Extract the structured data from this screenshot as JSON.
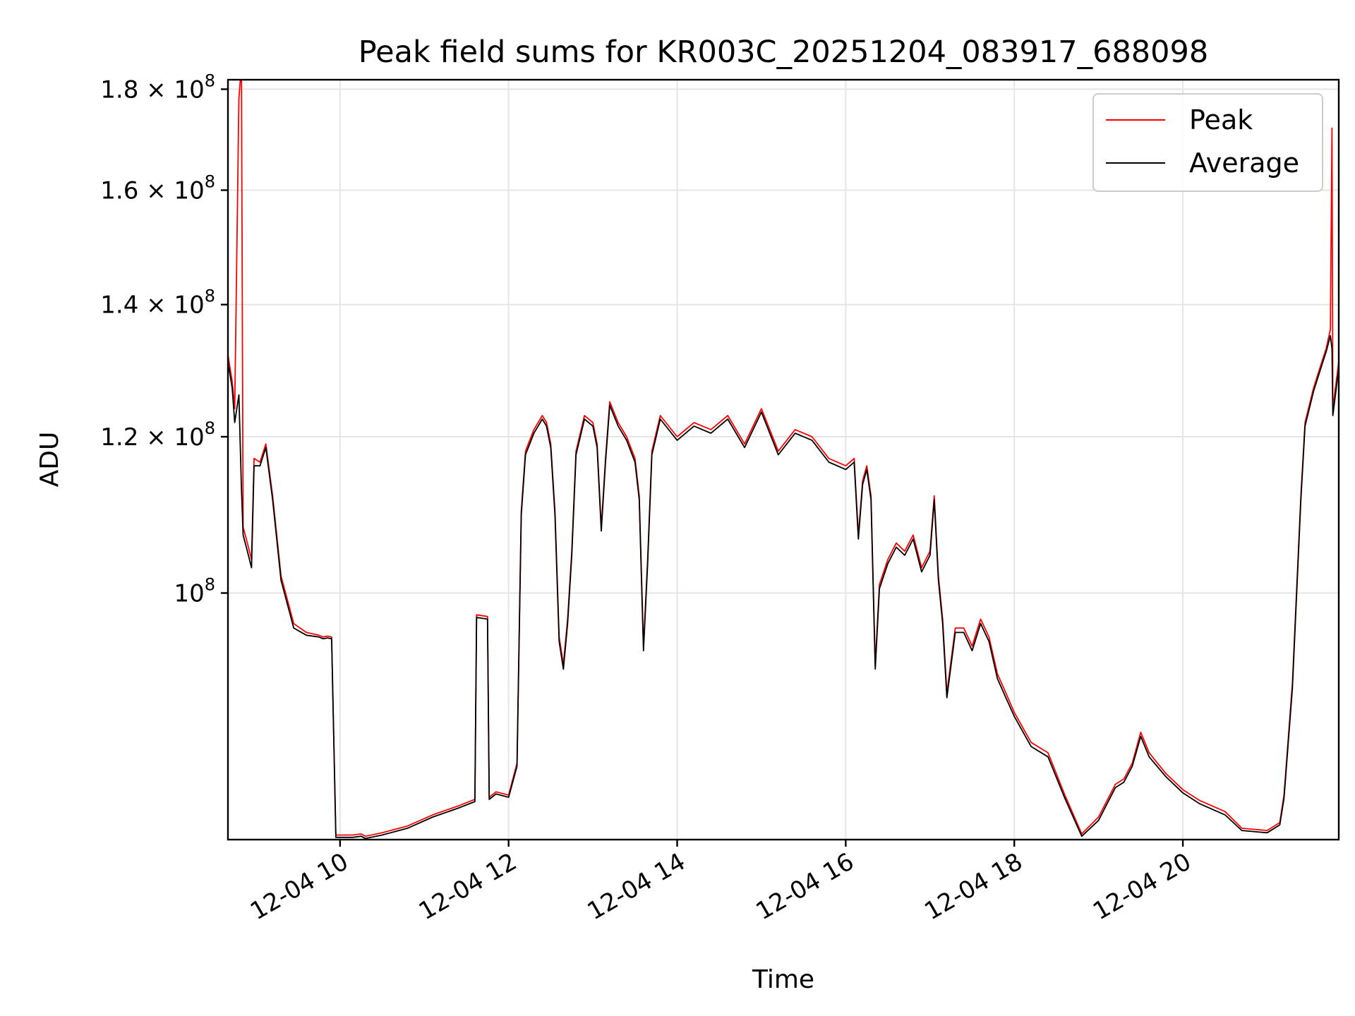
{
  "chart_data": {
    "type": "line",
    "title": "Peak field sums for KR003C_20251204_083917_688098",
    "xlabel": "Time",
    "ylabel": "ADU",
    "xlim_hours": [
      8.67,
      21.85
    ],
    "ylim": [
      75000000,
      182000000
    ],
    "y_scale": "log",
    "grid": true,
    "legend_position": "top-right",
    "x_ticks": [
      {
        "value": 10,
        "label": "12-04 10"
      },
      {
        "value": 12,
        "label": "12-04 12"
      },
      {
        "value": 14,
        "label": "12-04 14"
      },
      {
        "value": 16,
        "label": "12-04 16"
      },
      {
        "value": 18,
        "label": "12-04 18"
      },
      {
        "value": 20,
        "label": "12-04 20"
      }
    ],
    "y_ticks": [
      {
        "value": 100000000,
        "base": "10",
        "exp": "8"
      },
      {
        "value": 120000000,
        "base": "1.2 × 10",
        "exp": "8"
      },
      {
        "value": 140000000,
        "base": "1.4 × 10",
        "exp": "8"
      },
      {
        "value": 160000000,
        "base": "1.6 × 10",
        "exp": "8"
      },
      {
        "value": 180000000,
        "base": "1.8 × 10",
        "exp": "8"
      }
    ],
    "series": [
      {
        "name": "Peak",
        "color": "#ff0000",
        "points": [
          [
            8.67,
            132000000
          ],
          [
            8.72,
            128000000
          ],
          [
            8.75,
            124000000
          ],
          [
            8.8,
            178000000
          ],
          [
            8.83,
            185000000
          ],
          [
            8.85,
            108000000
          ],
          [
            8.9,
            106000000
          ],
          [
            8.95,
            104000000
          ],
          [
            8.98,
            117000000
          ],
          [
            9.05,
            116500000
          ],
          [
            9.12,
            119000000
          ],
          [
            9.2,
            112000000
          ],
          [
            9.3,
            102000000
          ],
          [
            9.45,
            96500000
          ],
          [
            9.6,
            95500000
          ],
          [
            9.75,
            95200000
          ],
          [
            9.8,
            95000000
          ],
          [
            9.85,
            95100000
          ],
          [
            9.9,
            95000000
          ],
          [
            9.95,
            75400000
          ],
          [
            10.15,
            75400000
          ],
          [
            10.25,
            75500000
          ],
          [
            10.3,
            75300000
          ],
          [
            10.5,
            75600000
          ],
          [
            10.8,
            76200000
          ],
          [
            11.1,
            77200000
          ],
          [
            11.4,
            78000000
          ],
          [
            11.6,
            78600000
          ],
          [
            11.62,
            97500000
          ],
          [
            11.75,
            97300000
          ],
          [
            11.77,
            78800000
          ],
          [
            11.85,
            79300000
          ],
          [
            12.0,
            79000000
          ],
          [
            12.1,
            82000000
          ],
          [
            12.15,
            110000000
          ],
          [
            12.2,
            118000000
          ],
          [
            12.3,
            121000000
          ],
          [
            12.4,
            123000000
          ],
          [
            12.45,
            122000000
          ],
          [
            12.5,
            119000000
          ],
          [
            12.55,
            110000000
          ],
          [
            12.6,
            95000000
          ],
          [
            12.65,
            92000000
          ],
          [
            12.7,
            97000000
          ],
          [
            12.75,
            105000000
          ],
          [
            12.8,
            118000000
          ],
          [
            12.9,
            123000000
          ],
          [
            13.0,
            122000000
          ],
          [
            13.05,
            119000000
          ],
          [
            13.1,
            108000000
          ],
          [
            13.15,
            117000000
          ],
          [
            13.2,
            125000000
          ],
          [
            13.3,
            122000000
          ],
          [
            13.4,
            120000000
          ],
          [
            13.5,
            117000000
          ],
          [
            13.55,
            112000000
          ],
          [
            13.6,
            94000000
          ],
          [
            13.65,
            104000000
          ],
          [
            13.7,
            118000000
          ],
          [
            13.8,
            123000000
          ],
          [
            14.0,
            120000000
          ],
          [
            14.2,
            122000000
          ],
          [
            14.4,
            121000000
          ],
          [
            14.6,
            123000000
          ],
          [
            14.8,
            119000000
          ],
          [
            15.0,
            124000000
          ],
          [
            15.2,
            118000000
          ],
          [
            15.4,
            121000000
          ],
          [
            15.6,
            120000000
          ],
          [
            15.8,
            117000000
          ],
          [
            16.0,
            116000000
          ],
          [
            16.1,
            117000000
          ],
          [
            16.15,
            107000000
          ],
          [
            16.2,
            114000000
          ],
          [
            16.25,
            116000000
          ],
          [
            16.3,
            112000000
          ],
          [
            16.35,
            92000000
          ],
          [
            16.4,
            101000000
          ],
          [
            16.5,
            104000000
          ],
          [
            16.6,
            106000000
          ],
          [
            16.7,
            105000000
          ],
          [
            16.8,
            107000000
          ],
          [
            16.9,
            103000000
          ],
          [
            17.0,
            105000000
          ],
          [
            17.05,
            112000000
          ],
          [
            17.1,
            102000000
          ],
          [
            17.15,
            97000000
          ],
          [
            17.2,
            89000000
          ],
          [
            17.3,
            96000000
          ],
          [
            17.4,
            96000000
          ],
          [
            17.5,
            94000000
          ],
          [
            17.6,
            97000000
          ],
          [
            17.7,
            95000000
          ],
          [
            17.8,
            91000000
          ],
          [
            17.9,
            89000000
          ],
          [
            18.0,
            87000000
          ],
          [
            18.2,
            84000000
          ],
          [
            18.4,
            83000000
          ],
          [
            18.6,
            79000000
          ],
          [
            18.8,
            75500000
          ],
          [
            19.0,
            77000000
          ],
          [
            19.2,
            80000000
          ],
          [
            19.3,
            80500000
          ],
          [
            19.4,
            82000000
          ],
          [
            19.5,
            85000000
          ],
          [
            19.6,
            83000000
          ],
          [
            19.8,
            81000000
          ],
          [
            20.0,
            79500000
          ],
          [
            20.2,
            78500000
          ],
          [
            20.5,
            77500000
          ],
          [
            20.7,
            76000000
          ],
          [
            21.0,
            75800000
          ],
          [
            21.15,
            76500000
          ],
          [
            21.2,
            79000000
          ],
          [
            21.3,
            90000000
          ],
          [
            21.4,
            112000000
          ],
          [
            21.45,
            122000000
          ],
          [
            21.55,
            127000000
          ],
          [
            21.65,
            131000000
          ],
          [
            21.7,
            133000000
          ],
          [
            21.75,
            136000000
          ],
          [
            21.77,
            172000000
          ],
          [
            21.78,
            124000000
          ],
          [
            21.85,
            131000000
          ]
        ]
      },
      {
        "name": "Average",
        "color": "#000000",
        "points": [
          [
            8.67,
            131000000
          ],
          [
            8.72,
            127000000
          ],
          [
            8.75,
            122000000
          ],
          [
            8.8,
            126000000
          ],
          [
            8.83,
            113000000
          ],
          [
            8.85,
            107000000
          ],
          [
            8.9,
            105000000
          ],
          [
            8.95,
            103000000
          ],
          [
            8.98,
            116000000
          ],
          [
            9.05,
            116000000
          ],
          [
            9.12,
            118500000
          ],
          [
            9.2,
            111500000
          ],
          [
            9.3,
            101500000
          ],
          [
            9.45,
            96000000
          ],
          [
            9.6,
            95200000
          ],
          [
            9.75,
            95000000
          ],
          [
            9.8,
            94800000
          ],
          [
            9.85,
            94900000
          ],
          [
            9.9,
            94800000
          ],
          [
            9.95,
            75200000
          ],
          [
            10.15,
            75200000
          ],
          [
            10.25,
            75300000
          ],
          [
            10.3,
            75100000
          ],
          [
            10.5,
            75400000
          ],
          [
            10.8,
            76000000
          ],
          [
            11.1,
            77000000
          ],
          [
            11.4,
            77800000
          ],
          [
            11.6,
            78400000
          ],
          [
            11.62,
            97200000
          ],
          [
            11.75,
            97000000
          ],
          [
            11.77,
            78600000
          ],
          [
            11.85,
            79100000
          ],
          [
            12.0,
            78800000
          ],
          [
            12.1,
            81700000
          ],
          [
            12.15,
            109500000
          ],
          [
            12.2,
            117500000
          ],
          [
            12.3,
            120500000
          ],
          [
            12.4,
            122500000
          ],
          [
            12.45,
            121500000
          ],
          [
            12.5,
            118500000
          ],
          [
            12.55,
            109500000
          ],
          [
            12.6,
            94500000
          ],
          [
            12.65,
            91500000
          ],
          [
            12.7,
            96500000
          ],
          [
            12.75,
            104500000
          ],
          [
            12.8,
            117500000
          ],
          [
            12.9,
            122500000
          ],
          [
            13.0,
            121500000
          ],
          [
            13.05,
            118500000
          ],
          [
            13.1,
            107500000
          ],
          [
            13.15,
            116500000
          ],
          [
            13.2,
            124500000
          ],
          [
            13.3,
            121500000
          ],
          [
            13.4,
            119500000
          ],
          [
            13.5,
            116500000
          ],
          [
            13.55,
            111500000
          ],
          [
            13.6,
            93500000
          ],
          [
            13.65,
            103500000
          ],
          [
            13.7,
            117500000
          ],
          [
            13.8,
            122500000
          ],
          [
            14.0,
            119500000
          ],
          [
            14.2,
            121500000
          ],
          [
            14.4,
            120500000
          ],
          [
            14.6,
            122500000
          ],
          [
            14.8,
            118500000
          ],
          [
            15.0,
            123500000
          ],
          [
            15.2,
            117500000
          ],
          [
            15.4,
            120500000
          ],
          [
            15.6,
            119500000
          ],
          [
            15.8,
            116500000
          ],
          [
            16.0,
            115500000
          ],
          [
            16.1,
            116500000
          ],
          [
            16.15,
            106500000
          ],
          [
            16.2,
            113500000
          ],
          [
            16.25,
            115500000
          ],
          [
            16.3,
            111500000
          ],
          [
            16.35,
            91500000
          ],
          [
            16.4,
            100500000
          ],
          [
            16.5,
            103500000
          ],
          [
            16.6,
            105500000
          ],
          [
            16.7,
            104500000
          ],
          [
            16.8,
            106500000
          ],
          [
            16.9,
            102500000
          ],
          [
            17.0,
            104500000
          ],
          [
            17.05,
            111500000
          ],
          [
            17.1,
            101500000
          ],
          [
            17.15,
            96500000
          ],
          [
            17.2,
            88500000
          ],
          [
            17.3,
            95500000
          ],
          [
            17.4,
            95500000
          ],
          [
            17.5,
            93500000
          ],
          [
            17.6,
            96500000
          ],
          [
            17.7,
            94500000
          ],
          [
            17.8,
            90500000
          ],
          [
            17.9,
            88500000
          ],
          [
            18.0,
            86600000
          ],
          [
            18.2,
            83600000
          ],
          [
            18.4,
            82600000
          ],
          [
            18.6,
            78700000
          ],
          [
            18.8,
            75300000
          ],
          [
            19.0,
            76700000
          ],
          [
            19.2,
            79700000
          ],
          [
            19.3,
            80200000
          ],
          [
            19.4,
            81700000
          ],
          [
            19.5,
            84600000
          ],
          [
            19.6,
            82600000
          ],
          [
            19.8,
            80700000
          ],
          [
            20.0,
            79200000
          ],
          [
            20.2,
            78200000
          ],
          [
            20.5,
            77200000
          ],
          [
            20.7,
            75800000
          ],
          [
            21.0,
            75600000
          ],
          [
            21.15,
            76300000
          ],
          [
            21.2,
            78700000
          ],
          [
            21.3,
            89500000
          ],
          [
            21.4,
            111500000
          ],
          [
            21.45,
            121500000
          ],
          [
            21.55,
            126500000
          ],
          [
            21.65,
            130500000
          ],
          [
            21.7,
            132500000
          ],
          [
            21.75,
            135000000
          ],
          [
            21.77,
            133000000
          ],
          [
            21.78,
            123000000
          ],
          [
            21.85,
            130000000
          ]
        ]
      }
    ]
  }
}
